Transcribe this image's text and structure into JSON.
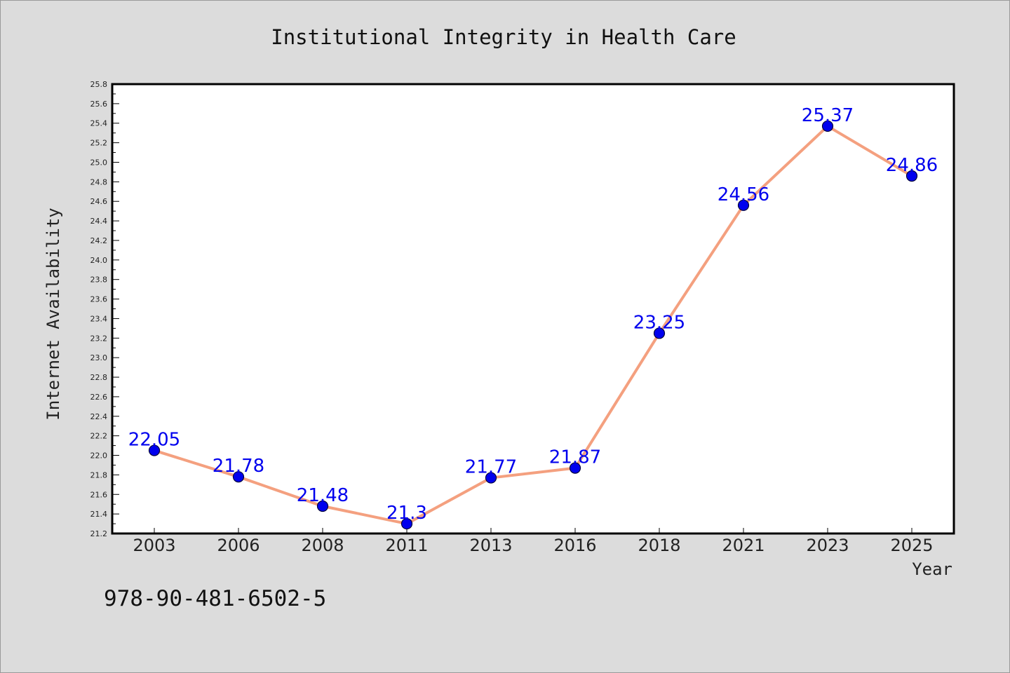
{
  "chart_data": {
    "type": "line",
    "title": "Institutional Integrity in Health Care",
    "xlabel": "Year",
    "ylabel": "Internet Availability",
    "categories": [
      "2003",
      "2006",
      "2008",
      "2011",
      "2013",
      "2016",
      "2018",
      "2021",
      "2023",
      "2025"
    ],
    "series": [
      {
        "values": [
          22.05,
          21.78,
          21.48,
          21.3,
          21.77,
          21.87,
          23.25,
          24.56,
          25.37,
          24.86
        ],
        "data_labels": [
          "22.05",
          "21.78",
          "21.48",
          "21.3",
          "21.77",
          "21.87",
          "23.25",
          "24.56",
          "25.37",
          "24.86"
        ]
      }
    ],
    "ylim": [
      21.2,
      25.8
    ],
    "yticks": [
      "21.2",
      "21.4",
      "21.6",
      "21.8",
      "22.0",
      "22.2",
      "22.4",
      "22.6",
      "22.8",
      "23.0",
      "23.2",
      "23.4",
      "23.6",
      "23.8",
      "24.0",
      "24.2",
      "24.4",
      "24.6",
      "24.8",
      "25.0",
      "25.2",
      "25.4",
      "25.6",
      "25.8"
    ],
    "grid": false,
    "colors": {
      "line": "#f4a07f",
      "marker_fill": "#0000ee",
      "marker_stroke": "#00003a",
      "data_label": "#0000ee",
      "plot_background": "#ffffff",
      "page_background": "#dcdcdc"
    }
  },
  "footer": {
    "isbn": "978-90-481-6502-5"
  }
}
